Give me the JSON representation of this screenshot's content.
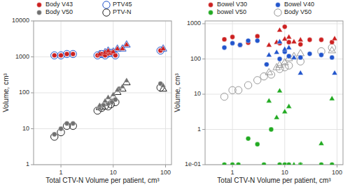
{
  "chart_data": [
    {
      "type": "scatter",
      "x_label": "Total CTV-N Volume per patient, cm³",
      "y_label": "Volume, cm³",
      "log": true,
      "grid": true,
      "legend": "upper left",
      "xlim": [
        0.3,
        130
      ],
      "ylim": [
        1,
        10000
      ],
      "xticks": [
        1,
        10,
        100
      ],
      "yticks": [
        1,
        10,
        100,
        1000,
        10000
      ],
      "series": [
        {
          "name": "Body V43",
          "color": "#cc2020",
          "marker": "circle",
          "x": [
            0.75,
            1.0,
            1.3,
            1.7,
            5.0,
            6.0,
            7.0,
            8.0,
            9.0,
            11.0,
            80.0
          ],
          "values": [
            1100,
            1100,
            1200,
            1200,
            1100,
            1200,
            1100,
            1250,
            1300,
            1100,
            1500
          ]
        },
        {
          "color": "#cc2020",
          "marker": "triangle",
          "x": [
            5.5,
            7.0,
            8.0,
            10.0,
            12.0,
            15.0,
            18.0,
            90.0
          ],
          "values": [
            1200,
            1350,
            1500,
            1400,
            1700,
            1700,
            2200,
            1700
          ]
        },
        {
          "name": "PTV45",
          "color": "#2255cc",
          "marker": "circle-open",
          "x": [
            0.75,
            1.0,
            1.3,
            1.7,
            5.0,
            6.0,
            7.0,
            8.0,
            9.0,
            11.0,
            80.0
          ],
          "values": [
            1100,
            1100,
            1200,
            1200,
            1100,
            1200,
            1100,
            1250,
            1300,
            1100,
            1500
          ]
        },
        {
          "color": "#2255cc",
          "marker": "triangle-open",
          "x": [
            5.5,
            7.0,
            8.0,
            10.0,
            12.0,
            15.0,
            18.0,
            90.0
          ],
          "values": [
            1200,
            1350,
            1500,
            1400,
            1700,
            1700,
            2200,
            1700
          ]
        },
        {
          "name": "Body V50",
          "color": "#707070",
          "marker": "circle",
          "x": [
            0.75,
            1.0,
            1.3,
            1.7,
            5.5,
            6.5,
            8.0,
            9.5,
            11.0,
            13.0,
            80.0
          ],
          "values": [
            7,
            10,
            14,
            14,
            40,
            45,
            50,
            55,
            65,
            130,
            180
          ]
        },
        {
          "color": "#707070",
          "marker": "triangle",
          "x": [
            5.5,
            7.0,
            8.0,
            10.0,
            12.0,
            15.0,
            18.0,
            90.0
          ],
          "values": [
            45,
            60,
            75,
            90,
            120,
            150,
            220,
            160
          ]
        },
        {
          "name": "PTV-N",
          "color": "#222222",
          "marker": "circle-open",
          "x": [
            0.75,
            1.0,
            1.3,
            1.7,
            5.0,
            6.0,
            7.0,
            8.0,
            9.0,
            11.0,
            80.0
          ],
          "values": [
            6,
            8,
            12,
            12,
            32,
            38,
            44,
            42,
            48,
            55,
            140
          ]
        },
        {
          "color": "#222222",
          "marker": "triangle-open",
          "x": [
            5.5,
            7.0,
            8.0,
            10.0,
            12.0,
            15.0,
            18.0,
            90.0
          ],
          "values": [
            40,
            52,
            65,
            78,
            105,
            130,
            195,
            130
          ]
        }
      ]
    },
    {
      "type": "scatter",
      "x_label": "Total CTV-N Volume per patient, cm³",
      "y_label": "Volume, cm³",
      "log": true,
      "grid": true,
      "legend": "upper left",
      "xlim": [
        0.3,
        130
      ],
      "ylim": [
        0.1,
        1200
      ],
      "xticks": [
        1,
        10,
        100
      ],
      "yticks": [
        {
          "value": 0.1,
          "label": "1e-01"
        },
        1,
        10,
        100,
        1000
      ],
      "series": [
        {
          "name": "Bowel V30",
          "color": "#cc2020",
          "marker": "circle",
          "x": [
            0.7,
            1.0,
            1.4,
            2.0,
            3.0,
            8.0,
            10.0,
            12.0,
            20.0,
            30.0,
            50.0,
            80.0
          ],
          "values": [
            360,
            420,
            250,
            290,
            440,
            280,
            820,
            300,
            260,
            350,
            350,
            300
          ]
        },
        {
          "color": "#cc2020",
          "marker": "triangle",
          "x": [
            5.0,
            7.0,
            8.0,
            10.0,
            12.0,
            15.0,
            20.0,
            90.0
          ],
          "values": [
            250,
            300,
            660,
            370,
            420,
            310,
            350,
            380
          ]
        },
        {
          "name": "Bowel V40",
          "color": "#2255cc",
          "marker": "circle",
          "x": [
            0.7,
            1.0,
            1.4,
            2.0,
            3.0,
            4.5,
            8.0,
            10.0,
            12.0,
            20.0,
            30.0,
            50.0,
            80.0
          ],
          "values": [
            210,
            280,
            250,
            330,
            330,
            70,
            100,
            160,
            120,
            110,
            140,
            130,
            110
          ]
        },
        {
          "color": "#2255cc",
          "marker": "triangle",
          "x": [
            5.0,
            7.0,
            8.0,
            10.0,
            12.0,
            15.0,
            20.0,
            90.0
          ],
          "values": [
            130,
            155,
            310,
            190,
            210,
            110,
            40,
            40
          ]
        },
        {
          "name": "bowel V50",
          "color": "#22aa22",
          "marker": "circle",
          "x": [
            0.7,
            1.0,
            1.3,
            2.0,
            3.0,
            4.0,
            5.5,
            8.0,
            10.0,
            12.0,
            20.0,
            50.0,
            80.0
          ],
          "values": [
            0.1,
            0.1,
            0.1,
            0.55,
            0.38,
            0.1,
            1.0,
            0.1,
            0.1,
            0.1,
            0.1,
            0.1,
            0.1
          ]
        },
        {
          "color": "#22aa22",
          "marker": "triangle",
          "x": [
            5.0,
            7.0,
            8.0,
            10.0,
            12.0,
            15.0,
            20.0,
            50.0,
            80.0
          ],
          "values": [
            6.5,
            2.2,
            12.5,
            3.2,
            4.5,
            0.1,
            0.1,
            0.4,
            7.5
          ]
        },
        {
          "name": "Body V50",
          "color": "#999999",
          "marker": "circle-open",
          "x": [
            0.7,
            1.0,
            1.3,
            2.0,
            3.0,
            4.0,
            5.5,
            8.0,
            10.0,
            12.0,
            20.0,
            50.0,
            80.0
          ],
          "values": [
            8.5,
            13,
            13,
            18,
            25,
            32,
            36,
            52,
            58,
            65,
            85,
            165,
            210
          ]
        },
        {
          "color": "#999999",
          "marker": "triangle-open",
          "x": [
            5.0,
            7.0,
            8.0,
            10.0,
            12.0,
            15.0,
            20.0,
            80.0
          ],
          "values": [
            42,
            58,
            68,
            80,
            105,
            120,
            145,
            175
          ]
        }
      ]
    }
  ]
}
